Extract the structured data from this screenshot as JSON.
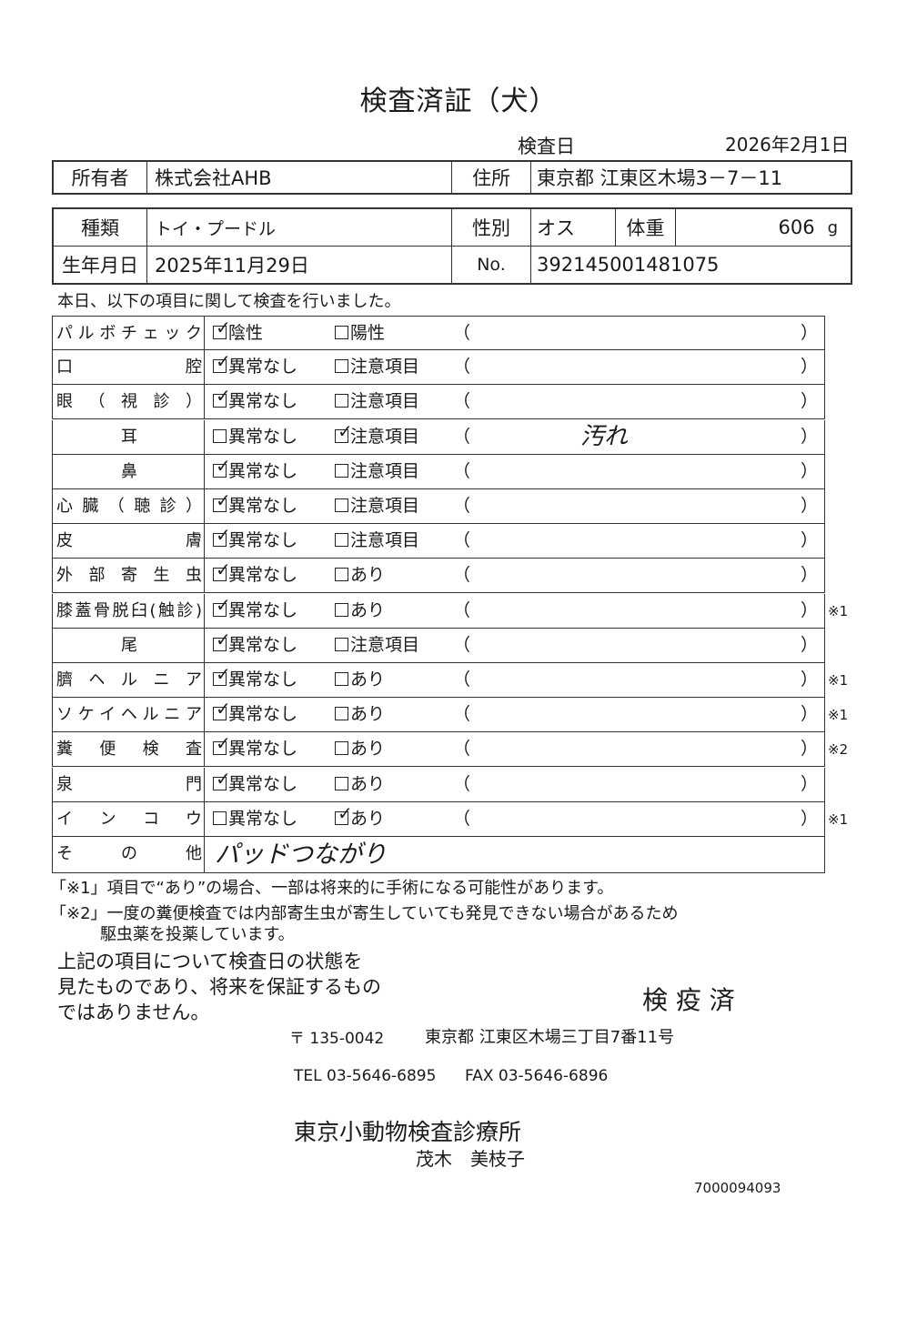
{
  "title": "検査済証（犬）",
  "inspection_date_label": "検査日",
  "inspection_date": "2026年2月1日",
  "owner": {
    "label": "所有者",
    "value": "株式会社AHB",
    "address_label": "住所",
    "address": "東京都 江東区木場3－7－11"
  },
  "animal": {
    "breed_label": "種類",
    "breed": "トイ・プードル",
    "sex_label": "性別",
    "sex": "オス",
    "weight_label": "体重",
    "weight": "606",
    "weight_unit": "g",
    "birth_label": "生年月日",
    "birth": "2025年11月29日",
    "no_label": "No.",
    "no": "392145001481075"
  },
  "intro": "本日、以下の項目に関して検査を行いました。",
  "open_paren": "（",
  "close_paren": "）",
  "rows": [
    {
      "label": "パルボチェック",
      "opt1": "陰性",
      "opt2": "陽性",
      "checked": 1,
      "note": "",
      "mark": ""
    },
    {
      "label": "口腔",
      "opt1": "異常なし",
      "opt2": "注意項目",
      "checked": 1,
      "note": "",
      "mark": ""
    },
    {
      "label": "眼（視診）",
      "opt1": "異常なし",
      "opt2": "注意項目",
      "checked": 1,
      "note": "",
      "mark": ""
    },
    {
      "label": "耳",
      "opt1": "異常なし",
      "opt2": "注意項目",
      "checked": 2,
      "note": "汚れ",
      "mark": ""
    },
    {
      "label": "鼻",
      "opt1": "異常なし",
      "opt2": "注意項目",
      "checked": 1,
      "note": "",
      "mark": ""
    },
    {
      "label": "心臓（聴診）",
      "opt1": "異常なし",
      "opt2": "注意項目",
      "checked": 1,
      "note": "",
      "mark": ""
    },
    {
      "label": "皮膚",
      "opt1": "異常なし",
      "opt2": "注意項目",
      "checked": 1,
      "note": "",
      "mark": ""
    },
    {
      "label": "外部寄生虫",
      "opt1": "異常なし",
      "opt2": "あり",
      "checked": 1,
      "note": "",
      "mark": ""
    },
    {
      "label": "膝蓋骨脱臼(触診)",
      "opt1": "異常なし",
      "opt2": "あり",
      "checked": 1,
      "note": "",
      "mark": "※1"
    },
    {
      "label": "尾",
      "opt1": "異常なし",
      "opt2": "注意項目",
      "checked": 1,
      "note": "",
      "mark": ""
    },
    {
      "label": "臍ヘルニア",
      "opt1": "異常なし",
      "opt2": "あり",
      "checked": 1,
      "note": "",
      "mark": "※1"
    },
    {
      "label": "ソケイヘルニア",
      "opt1": "異常なし",
      "opt2": "あり",
      "checked": 1,
      "note": "",
      "mark": "※1"
    },
    {
      "label": "糞便検査",
      "opt1": "異常なし",
      "opt2": "あり",
      "checked": 1,
      "note": "",
      "mark": "※2"
    },
    {
      "label": "泉門",
      "opt1": "異常なし",
      "opt2": "あり",
      "checked": 1,
      "note": "",
      "mark": ""
    },
    {
      "label": "インコウ",
      "opt1": "異常なし",
      "opt2": "あり",
      "checked": 2,
      "note": "",
      "mark": "※1"
    }
  ],
  "other": {
    "label": "その他",
    "value": "パッドつながり"
  },
  "footnote1": "「※1」項目で“あり”の場合、一部は将来的に手術になる可能性があります。",
  "footnote2_line1": "「※2」一度の糞便検査では内部寄生虫が寄生していても発見できない場合があるため",
  "footnote2_line2": "駆虫薬を投薬しています。",
  "disclaimer": [
    "上記の項目について検査日の状態を",
    "見たものであり、将来を保証するもの",
    "ではありません。"
  ],
  "stamp": "検 疫 済",
  "postal": "〒 135-0042",
  "address": "東京都 江東区木場三丁目7番11号",
  "tel": "TEL 03-5646-6895",
  "fax": "FAX 03-5646-6896",
  "clinic": "東京小動物検査診療所",
  "doctor": "茂木　美枝子",
  "doc_number": "7000094093"
}
